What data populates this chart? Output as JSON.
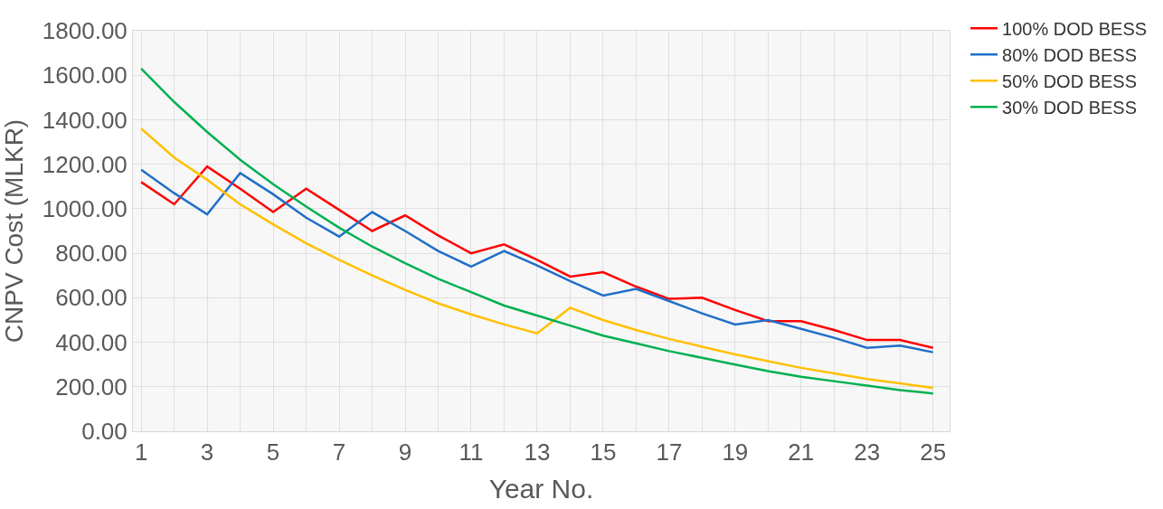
{
  "chart_data": {
    "type": "line",
    "xlabel": "Year No.",
    "ylabel": "CNPV Cost (MLKR)",
    "x": [
      1,
      2,
      3,
      4,
      5,
      6,
      7,
      8,
      9,
      10,
      11,
      12,
      13,
      14,
      15,
      16,
      17,
      18,
      19,
      20,
      21,
      22,
      23,
      24,
      25
    ],
    "series": [
      {
        "name": "100% DOD BESS",
        "color": "#ff0000",
        "values": [
          1120,
          1020,
          1190,
          1090,
          985,
          1090,
          995,
          900,
          970,
          880,
          800,
          840,
          770,
          695,
          715,
          650,
          595,
          600,
          545,
          495,
          495,
          455,
          410,
          410,
          375
        ]
      },
      {
        "name": "80% DOD BESS",
        "color": "#1f6fc8",
        "values": [
          1175,
          1070,
          975,
          1160,
          1065,
          960,
          875,
          985,
          900,
          810,
          740,
          810,
          745,
          675,
          610,
          640,
          585,
          530,
          480,
          500,
          460,
          420,
          375,
          385,
          355
        ]
      },
      {
        "name": "50% DOD BESS",
        "color": "#ffc000",
        "values": [
          1360,
          1230,
          1130,
          1020,
          930,
          845,
          770,
          700,
          635,
          575,
          525,
          480,
          440,
          555,
          500,
          455,
          415,
          380,
          345,
          315,
          285,
          260,
          235,
          215,
          195
        ]
      },
      {
        "name": "30% DOD BESS",
        "color": "#00b050",
        "values": [
          1630,
          1480,
          1345,
          1220,
          1110,
          1010,
          915,
          830,
          755,
          685,
          625,
          565,
          520,
          475,
          430,
          395,
          360,
          330,
          300,
          270,
          245,
          225,
          205,
          185,
          170
        ]
      }
    ],
    "xlim": [
      0.75,
      25.5
    ],
    "xticks": [
      {
        "value": 1,
        "label": "1"
      },
      {
        "value": 2,
        "label": null
      },
      {
        "value": 3,
        "label": "3"
      },
      {
        "value": 4,
        "label": null
      },
      {
        "value": 5,
        "label": "5"
      },
      {
        "value": 6,
        "label": null
      },
      {
        "value": 7,
        "label": "7"
      },
      {
        "value": 8,
        "label": null
      },
      {
        "value": 9,
        "label": "9"
      },
      {
        "value": 10,
        "label": null
      },
      {
        "value": 11,
        "label": "11"
      },
      {
        "value": 12,
        "label": null
      },
      {
        "value": 13,
        "label": "13"
      },
      {
        "value": 14,
        "label": null
      },
      {
        "value": 15,
        "label": "15"
      },
      {
        "value": 16,
        "label": null
      },
      {
        "value": 17,
        "label": "17"
      },
      {
        "value": 18,
        "label": null
      },
      {
        "value": 19,
        "label": "19"
      },
      {
        "value": 20,
        "label": null
      },
      {
        "value": 21,
        "label": "21"
      },
      {
        "value": 22,
        "label": null
      },
      {
        "value": 23,
        "label": "23"
      },
      {
        "value": 24,
        "label": null
      },
      {
        "value": 25,
        "label": "25"
      }
    ],
    "ylim": [
      0,
      1800
    ],
    "yticks": [
      {
        "value": 0,
        "label": "0.00"
      },
      {
        "value": 200,
        "label": "200.00"
      },
      {
        "value": 400,
        "label": "400.00"
      },
      {
        "value": 600,
        "label": "600.00"
      },
      {
        "value": 800,
        "label": "800.00"
      },
      {
        "value": 1000,
        "label": "1000.00"
      },
      {
        "value": 1200,
        "label": "1200.00"
      },
      {
        "value": 1400,
        "label": "1400.00"
      },
      {
        "value": 1600,
        "label": "1600.00"
      },
      {
        "value": 1800,
        "label": "1800.00"
      }
    ],
    "grid": true,
    "legend": "top right",
    "marker": "none",
    "line_style": "solid"
  }
}
